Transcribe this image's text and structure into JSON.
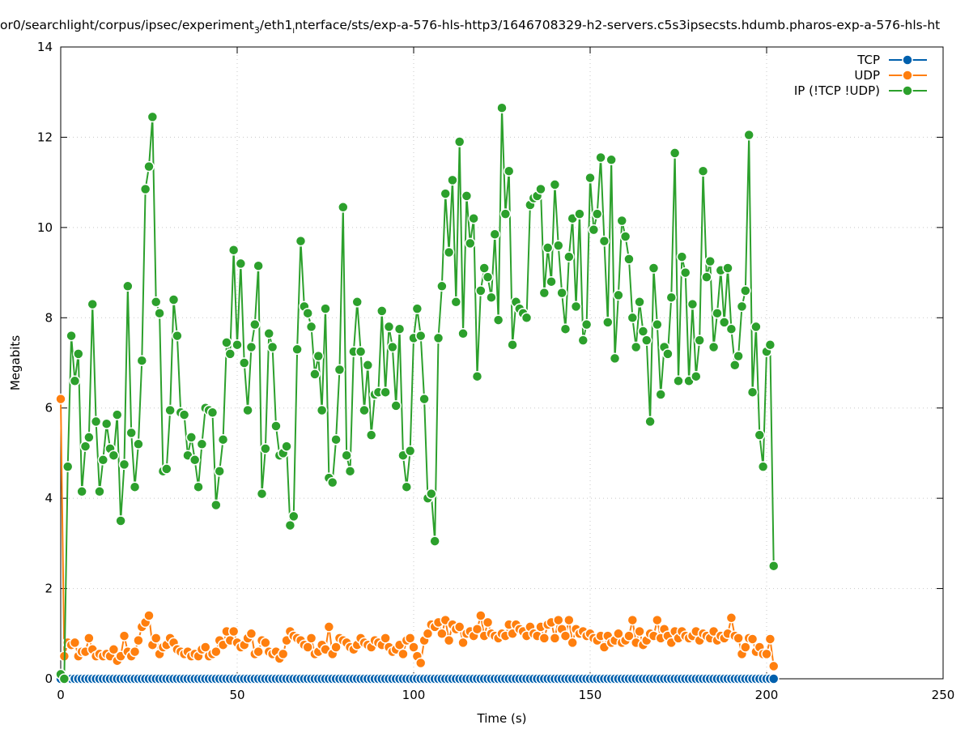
{
  "chart_data": {
    "type": "line",
    "title_parts": [
      "or0/searchlight/corpus/ipsec/experiment",
      "3",
      "/eth1",
      "I",
      "nterface/sts/exp-a-576-hls-http3/1646708329-h2-servers.c5s3ipsecsts.hdumb.pharos-exp-a-576-hls-ht"
    ],
    "xlabel": "Time (s)",
    "ylabel": "Megabits",
    "xlim": [
      0,
      250
    ],
    "ylim": [
      0,
      14
    ],
    "xticks": [
      "0",
      "50",
      "100",
      "150",
      "200",
      "250"
    ],
    "yticks": [
      "0",
      "2",
      "4",
      "6",
      "8",
      "10",
      "12",
      "14"
    ],
    "grid": true,
    "legend_position": "top-right",
    "x_start": 0,
    "x_step": 1,
    "series": [
      {
        "name": "TCP",
        "color": "#0060ad",
        "values": [
          0,
          0,
          0,
          0,
          0,
          0,
          0,
          0,
          0,
          0,
          0,
          0,
          0,
          0,
          0,
          0,
          0,
          0,
          0,
          0,
          0,
          0,
          0,
          0,
          0,
          0,
          0,
          0,
          0,
          0,
          0,
          0,
          0,
          0,
          0,
          0,
          0,
          0,
          0,
          0,
          0,
          0,
          0,
          0,
          0,
          0,
          0,
          0,
          0,
          0,
          0,
          0,
          0,
          0,
          0,
          0,
          0,
          0,
          0,
          0,
          0,
          0,
          0,
          0,
          0,
          0,
          0,
          0,
          0,
          0,
          0,
          0,
          0,
          0,
          0,
          0,
          0,
          0,
          0,
          0,
          0,
          0,
          0,
          0,
          0,
          0,
          0,
          0,
          0,
          0,
          0,
          0,
          0,
          0,
          0,
          0,
          0,
          0,
          0,
          0,
          0,
          0,
          0,
          0,
          0,
          0,
          0,
          0,
          0,
          0,
          0,
          0,
          0,
          0,
          0,
          0,
          0,
          0,
          0,
          0,
          0,
          0,
          0,
          0,
          0,
          0,
          0,
          0,
          0,
          0,
          0,
          0,
          0,
          0,
          0,
          0,
          0,
          0,
          0,
          0,
          0,
          0,
          0,
          0,
          0,
          0,
          0,
          0,
          0,
          0,
          0,
          0,
          0,
          0,
          0,
          0,
          0,
          0,
          0,
          0,
          0,
          0,
          0,
          0,
          0,
          0,
          0,
          0,
          0,
          0,
          0,
          0,
          0,
          0,
          0,
          0,
          0,
          0,
          0,
          0,
          0,
          0,
          0,
          0,
          0,
          0,
          0,
          0,
          0,
          0,
          0,
          0,
          0,
          0,
          0,
          0,
          0,
          0,
          0,
          0,
          0,
          0,
          0
        ]
      },
      {
        "name": "UDP",
        "color": "#ff7f0e",
        "values": [
          6.2,
          0.5,
          0.8,
          0.75,
          0.8,
          0.5,
          0.6,
          0.6,
          0.9,
          0.65,
          0.5,
          0.55,
          0.5,
          0.55,
          0.5,
          0.65,
          0.4,
          0.5,
          0.95,
          0.6,
          0.5,
          0.6,
          0.85,
          1.15,
          1.25,
          1.4,
          0.75,
          0.9,
          0.55,
          0.7,
          0.75,
          0.9,
          0.8,
          0.65,
          0.6,
          0.55,
          0.6,
          0.5,
          0.55,
          0.5,
          0.65,
          0.7,
          0.5,
          0.55,
          0.6,
          0.85,
          0.75,
          1.05,
          0.85,
          1.05,
          0.8,
          0.7,
          0.75,
          0.9,
          1.0,
          0.55,
          0.6,
          0.85,
          0.8,
          0.6,
          0.55,
          0.6,
          0.45,
          0.55,
          0.85,
          1.05,
          0.95,
          0.9,
          0.85,
          0.75,
          0.7,
          0.9,
          0.55,
          0.6,
          0.75,
          0.65,
          1.15,
          0.55,
          0.7,
          0.9,
          0.85,
          0.8,
          0.7,
          0.65,
          0.75,
          0.9,
          0.8,
          0.75,
          0.7,
          0.85,
          0.8,
          0.75,
          0.9,
          0.7,
          0.6,
          0.65,
          0.75,
          0.55,
          0.85,
          0.9,
          0.7,
          0.5,
          0.35,
          0.85,
          1.0,
          1.2,
          1.15,
          1.25,
          1.0,
          1.3,
          0.85,
          1.2,
          1.1,
          1.15,
          0.8,
          1.0,
          1.05,
          0.95,
          1.1,
          1.4,
          0.95,
          1.25,
          1.0,
          0.95,
          0.9,
          1.0,
          0.95,
          1.2,
          1.0,
          1.2,
          1.1,
          1.05,
          0.95,
          1.15,
          1.0,
          0.95,
          1.15,
          0.9,
          1.2,
          1.25,
          0.9,
          1.3,
          1.1,
          0.95,
          1.3,
          0.8,
          1.1,
          1.0,
          1.05,
          0.95,
          1.0,
          0.9,
          0.85,
          0.95,
          0.7,
          0.95,
          0.8,
          0.85,
          1.0,
          0.8,
          0.85,
          0.95,
          1.3,
          0.8,
          1.05,
          0.75,
          0.85,
          1.0,
          0.95,
          1.3,
          0.9,
          1.1,
          0.95,
          0.8,
          1.05,
          0.9,
          1.05,
          0.95,
          0.9,
          0.95,
          1.05,
          0.85,
          1.0,
          0.95,
          0.9,
          1.05,
          0.85,
          0.95,
          0.9,
          1.0,
          1.35,
          0.95,
          0.9,
          0.55,
          0.7,
          0.9,
          0.88,
          0.6,
          0.7,
          0.55,
          0.55,
          0.88,
          0.28
        ]
      },
      {
        "name": "IP (!TCP  !UDP)",
        "color": "#2ca02c",
        "values": [
          0.1,
          0.0,
          4.7,
          7.6,
          6.6,
          7.2,
          4.15,
          5.15,
          5.35,
          8.3,
          5.7,
          4.15,
          4.85,
          5.65,
          5.1,
          4.95,
          5.85,
          3.5,
          4.75,
          8.7,
          5.45,
          4.25,
          5.2,
          7.05,
          10.85,
          11.35,
          12.45,
          8.35,
          8.1,
          4.6,
          4.65,
          5.95,
          8.4,
          7.6,
          5.9,
          5.85,
          4.95,
          5.35,
          4.85,
          4.25,
          5.2,
          6.0,
          5.95,
          5.9,
          3.85,
          4.6,
          5.3,
          7.45,
          7.2,
          9.5,
          7.4,
          9.2,
          7.0,
          5.95,
          7.35,
          7.85,
          9.15,
          4.1,
          5.1,
          7.65,
          7.35,
          5.6,
          4.95,
          5.0,
          5.15,
          3.4,
          3.6,
          7.3,
          9.7,
          8.25,
          8.1,
          7.8,
          6.75,
          7.15,
          5.95,
          8.2,
          4.45,
          4.35,
          5.3,
          6.85,
          10.45,
          4.95,
          4.6,
          7.25,
          8.35,
          7.25,
          5.95,
          6.95,
          5.4,
          6.3,
          6.35,
          8.15,
          6.35,
          7.8,
          7.35,
          6.05,
          7.75,
          4.95,
          4.25,
          5.05,
          7.55,
          8.2,
          7.6,
          6.2,
          4.0,
          4.1,
          3.05,
          7.55,
          8.7,
          10.75,
          9.45,
          11.05,
          8.35,
          11.9,
          7.65,
          10.7,
          9.65,
          10.2,
          6.7,
          8.6,
          9.1,
          8.9,
          8.45,
          9.85,
          7.95,
          12.65,
          10.3,
          11.25,
          7.4,
          8.35,
          8.2,
          8.1,
          8.0,
          10.5,
          10.65,
          10.7,
          10.85,
          8.55,
          9.55,
          8.8,
          10.95,
          9.6,
          8.55,
          7.75,
          9.35,
          10.2,
          8.25,
          10.3,
          7.5,
          7.85,
          11.1,
          9.95,
          10.3,
          11.55,
          9.7,
          7.9,
          11.5,
          7.1,
          8.5,
          10.15,
          9.8,
          9.3,
          8.0,
          7.35,
          8.35,
          7.7,
          7.5,
          5.7,
          9.1,
          7.85,
          6.3,
          7.35,
          7.2,
          8.45,
          11.65,
          6.6,
          9.35,
          9.0,
          6.6,
          8.3,
          6.7,
          7.5,
          11.25,
          8.9,
          9.25,
          7.35,
          8.1,
          9.05,
          7.9,
          9.1,
          7.75,
          6.95,
          7.15,
          8.25,
          8.6,
          12.05,
          6.35,
          7.8,
          5.4,
          4.7,
          7.25,
          7.4,
          2.5
        ]
      }
    ]
  }
}
